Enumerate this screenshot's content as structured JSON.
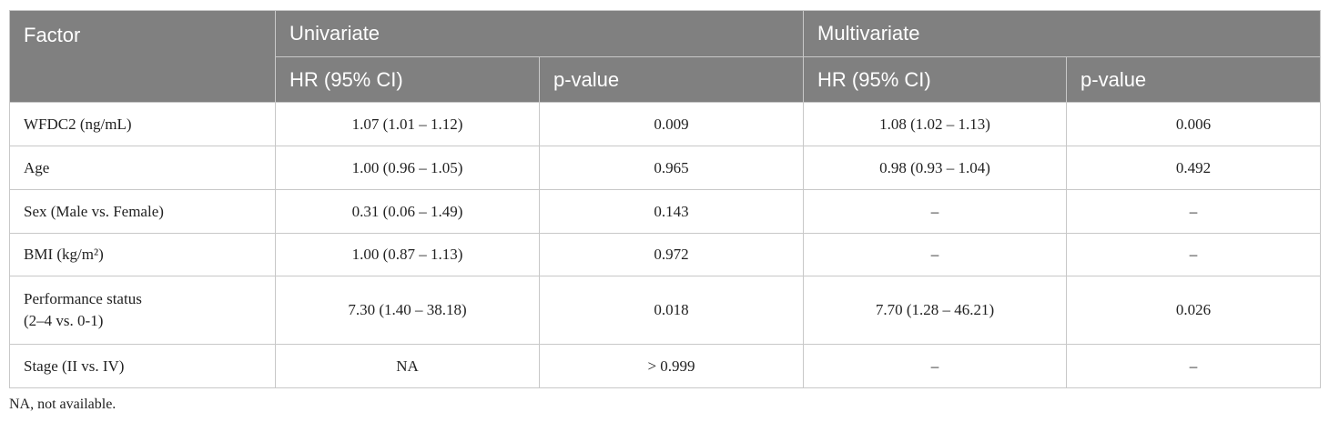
{
  "table": {
    "header": {
      "factor": "Factor",
      "univariate": "Univariate",
      "multivariate": "Multivariate",
      "subheaders": [
        "HR (95% CI)",
        "p-value",
        "HR (95% CI)",
        "p-value"
      ]
    },
    "rows": [
      {
        "factor": "WFDC2 (ng/mL)",
        "cells": [
          "1.07 (1.01 – 1.12)",
          "0.009",
          "1.08 (1.02 – 1.13)",
          "0.006"
        ]
      },
      {
        "factor": "Age",
        "cells": [
          "1.00 (0.96 – 1.05)",
          "0.965",
          "0.98 (0.93 – 1.04)",
          "0.492"
        ]
      },
      {
        "factor": "Sex (Male vs. Female)",
        "cells": [
          "0.31 (0.06 – 1.49)",
          "0.143",
          "–",
          "–"
        ]
      },
      {
        "factor": "BMI (kg/m²)",
        "cells": [
          "1.00 (0.87 – 1.13)",
          "0.972",
          "–",
          "–"
        ]
      },
      {
        "factor": "Performance status\n(2–4 vs. 0-1)",
        "cells": [
          "7.30 (1.40 – 38.18)",
          "0.018",
          "7.70 (1.28 – 46.21)",
          "0.026"
        ]
      },
      {
        "factor": "Stage (II vs. IV)",
        "cells": [
          "NA",
          "> 0.999",
          "–",
          "–"
        ]
      }
    ],
    "footnote": "NA, not available."
  }
}
